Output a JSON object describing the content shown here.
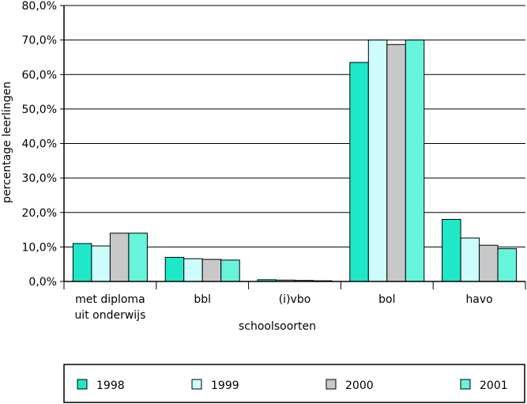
{
  "chart_data": {
    "type": "bar",
    "categories": [
      [
        "met diploma",
        "uit onderwijs"
      ],
      [
        "bbl"
      ],
      [
        "(i)vbo"
      ],
      [
        "bol"
      ],
      [
        "havo"
      ]
    ],
    "series": [
      {
        "name": "1998",
        "values": [
          11.0,
          7.0,
          0.5,
          63.5,
          18.0
        ]
      },
      {
        "name": "1999",
        "values": [
          10.3,
          6.6,
          0.4,
          70.0,
          12.6
        ]
      },
      {
        "name": "2000",
        "values": [
          14.0,
          6.4,
          0.3,
          68.7,
          10.5
        ]
      },
      {
        "name": "2001",
        "values": [
          14.0,
          6.2,
          0.2,
          70.0,
          9.5
        ]
      }
    ],
    "xlabel": "schoolsoorten",
    "ylabel": "percentage leerlingen",
    "ylim": [
      0,
      80
    ],
    "yticks": [
      "0,0%",
      "10,0%",
      "20,0%",
      "30,0%",
      "40,0%",
      "50,0%",
      "60,0%",
      "70,0%",
      "80,0%"
    ],
    "grid": true,
    "legend_position": "bottom",
    "colors": [
      "#1ee8c8",
      "#ccfcfc",
      "#c8c8c8",
      "#66f4dc"
    ]
  }
}
